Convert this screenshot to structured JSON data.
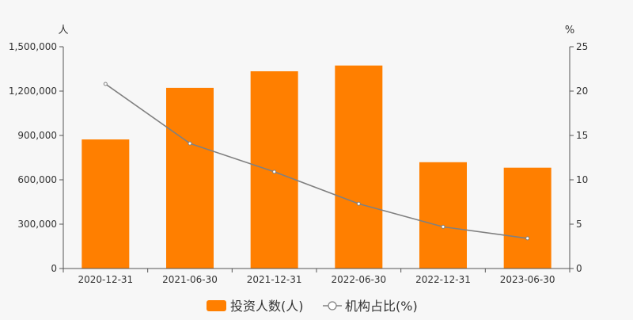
{
  "chart_data": {
    "type": "bar",
    "left_unit": "人",
    "right_unit": "%",
    "categories": [
      "2020-12-31",
      "2021-06-30",
      "2021-12-31",
      "2022-06-30",
      "2022-12-31",
      "2023-06-30"
    ],
    "series": [
      {
        "name": "投资人数(人)",
        "type": "bar",
        "axis": "left",
        "color": "#ff7f00",
        "values": [
          873000,
          1222000,
          1334000,
          1373000,
          719000,
          682000
        ]
      },
      {
        "name": "机构占比(%)",
        "type": "line",
        "axis": "right",
        "color": "#808080",
        "values": [
          20.8,
          14.1,
          10.9,
          7.3,
          4.7,
          3.4
        ]
      }
    ],
    "y_left": {
      "min": 0,
      "max": 1500000,
      "ticks": [
        0,
        300000,
        600000,
        900000,
        1200000,
        1500000
      ],
      "tick_labels": [
        "0",
        "300,000",
        "600,000",
        "900,000",
        "1,200,000",
        "1,500,000"
      ]
    },
    "y_right": {
      "min": 0,
      "max": 25,
      "ticks": [
        0,
        5,
        10,
        15,
        20,
        25
      ],
      "tick_labels": [
        "0",
        "5",
        "10",
        "15",
        "20",
        "25"
      ]
    },
    "grid": false,
    "legend_position": "bottom-center"
  }
}
